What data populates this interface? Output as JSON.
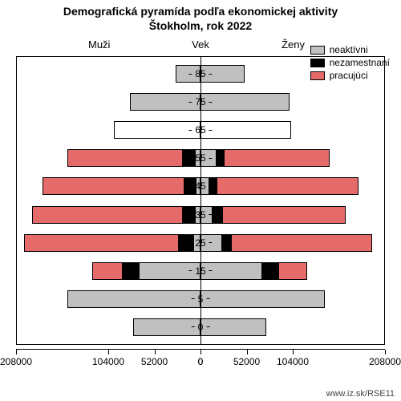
{
  "title_line1": "Demografická pyramída podľa ekonomickej aktivity",
  "title_line2": "Štokholm, rok 2022",
  "title_fontsize_pt": 14,
  "label_fontsize_pt": 13,
  "tick_fontsize_pt": 12,
  "labels": {
    "men": "Muži",
    "age": "Vek",
    "women": "Ženy"
  },
  "legend": {
    "inactive": {
      "label": "neaktívni",
      "color": "#c0c0c0"
    },
    "unemployed": {
      "label": "nezamestnaní",
      "color": "#000000"
    },
    "working": {
      "label": "pracujúci",
      "color": "#e56b6b"
    }
  },
  "axis": {
    "max": 208000,
    "ticks_left": [
      "208000",
      "104000",
      "52000",
      "0"
    ],
    "ticks_right": [
      "0",
      "52000",
      "104000",
      "208000"
    ],
    "tick_positions_left_pct": [
      0,
      50,
      75,
      100
    ],
    "tick_positions_right_pct": [
      0,
      25,
      50,
      100
    ]
  },
  "colors": {
    "background": "#ffffff",
    "border": "#000000",
    "empty_fill": "#ffffff"
  },
  "source": "www.iz.sk/RSE11",
  "rows": [
    {
      "age": "85",
      "labelSide": "right",
      "male": {
        "inactive": 28000,
        "unemployed": 0,
        "working": 0
      },
      "female": {
        "inactive": 50000,
        "unemployed": 0,
        "working": 0
      }
    },
    {
      "age": "75",
      "labelSide": "right",
      "male": {
        "inactive": 80000,
        "unemployed": 0,
        "working": 0
      },
      "female": {
        "inactive": 100000,
        "unemployed": 0,
        "working": 0
      }
    },
    {
      "age": "65",
      "labelSide": "right",
      "male": {
        "empty": 98000
      },
      "female": {
        "empty": 102000
      }
    },
    {
      "age": "55",
      "labelSide": "left",
      "male": {
        "inactive": 6000,
        "unemployed": 14000,
        "working": 130000
      },
      "female": {
        "inactive": 18000,
        "unemployed": 8000,
        "working": 120000
      }
    },
    {
      "age": "45",
      "labelSide": "left",
      "male": {
        "inactive": 5000,
        "unemployed": 13000,
        "working": 160000
      },
      "female": {
        "inactive": 10000,
        "unemployed": 8000,
        "working": 160000
      }
    },
    {
      "age": "35",
      "labelSide": "left",
      "male": {
        "inactive": 6000,
        "unemployed": 14000,
        "working": 170000
      },
      "female": {
        "inactive": 14000,
        "unemployed": 10000,
        "working": 140000
      }
    },
    {
      "age": "25",
      "labelSide": "left",
      "male": {
        "inactive": 8000,
        "unemployed": 16000,
        "working": 175000
      },
      "female": {
        "inactive": 24000,
        "unemployed": 10000,
        "working": 160000
      }
    },
    {
      "age": "15",
      "labelSide": "left",
      "male": {
        "inactive": 70000,
        "unemployed": 18000,
        "working": 34000
      },
      "female": {
        "inactive": 70000,
        "unemployed": 18000,
        "working": 32000
      }
    },
    {
      "age": "5",
      "labelSide": "right",
      "male": {
        "inactive": 150000,
        "unemployed": 0,
        "working": 0
      },
      "female": {
        "inactive": 140000,
        "unemployed": 0,
        "working": 0
      }
    },
    {
      "age": "0",
      "labelSide": "right",
      "male": {
        "inactive": 76000,
        "unemployed": 0,
        "working": 0
      },
      "female": {
        "inactive": 74000,
        "unemployed": 0,
        "working": 0
      }
    }
  ]
}
